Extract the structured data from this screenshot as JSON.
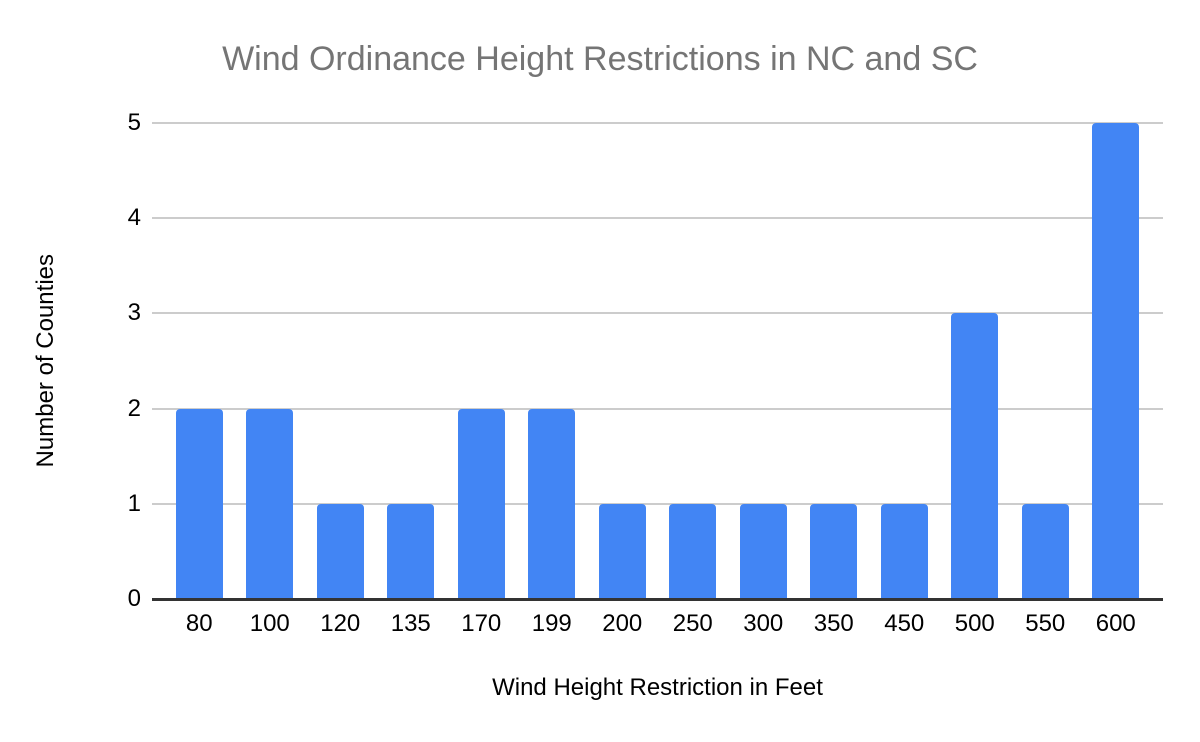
{
  "chart_data": {
    "type": "bar",
    "title": "Wind Ordinance Height Restrictions in NC and SC",
    "xlabel": "Wind Height Restriction in Feet",
    "ylabel": "Number of Counties",
    "categories": [
      "80",
      "100",
      "120",
      "135",
      "170",
      "199",
      "200",
      "250",
      "300",
      "350",
      "450",
      "500",
      "550",
      "600"
    ],
    "values": [
      2,
      2,
      1,
      1,
      2,
      2,
      1,
      1,
      1,
      1,
      1,
      3,
      1,
      5
    ],
    "ylim": [
      0,
      5
    ],
    "yticks": [
      0,
      1,
      2,
      3,
      4,
      5
    ],
    "grid": true,
    "legend": "none",
    "colors": {
      "bar": "#4285f4",
      "title_text": "#757575",
      "axis_text": "#000000",
      "gridline": "#cccccc",
      "baseline": "#333333",
      "background": "#ffffff"
    }
  }
}
